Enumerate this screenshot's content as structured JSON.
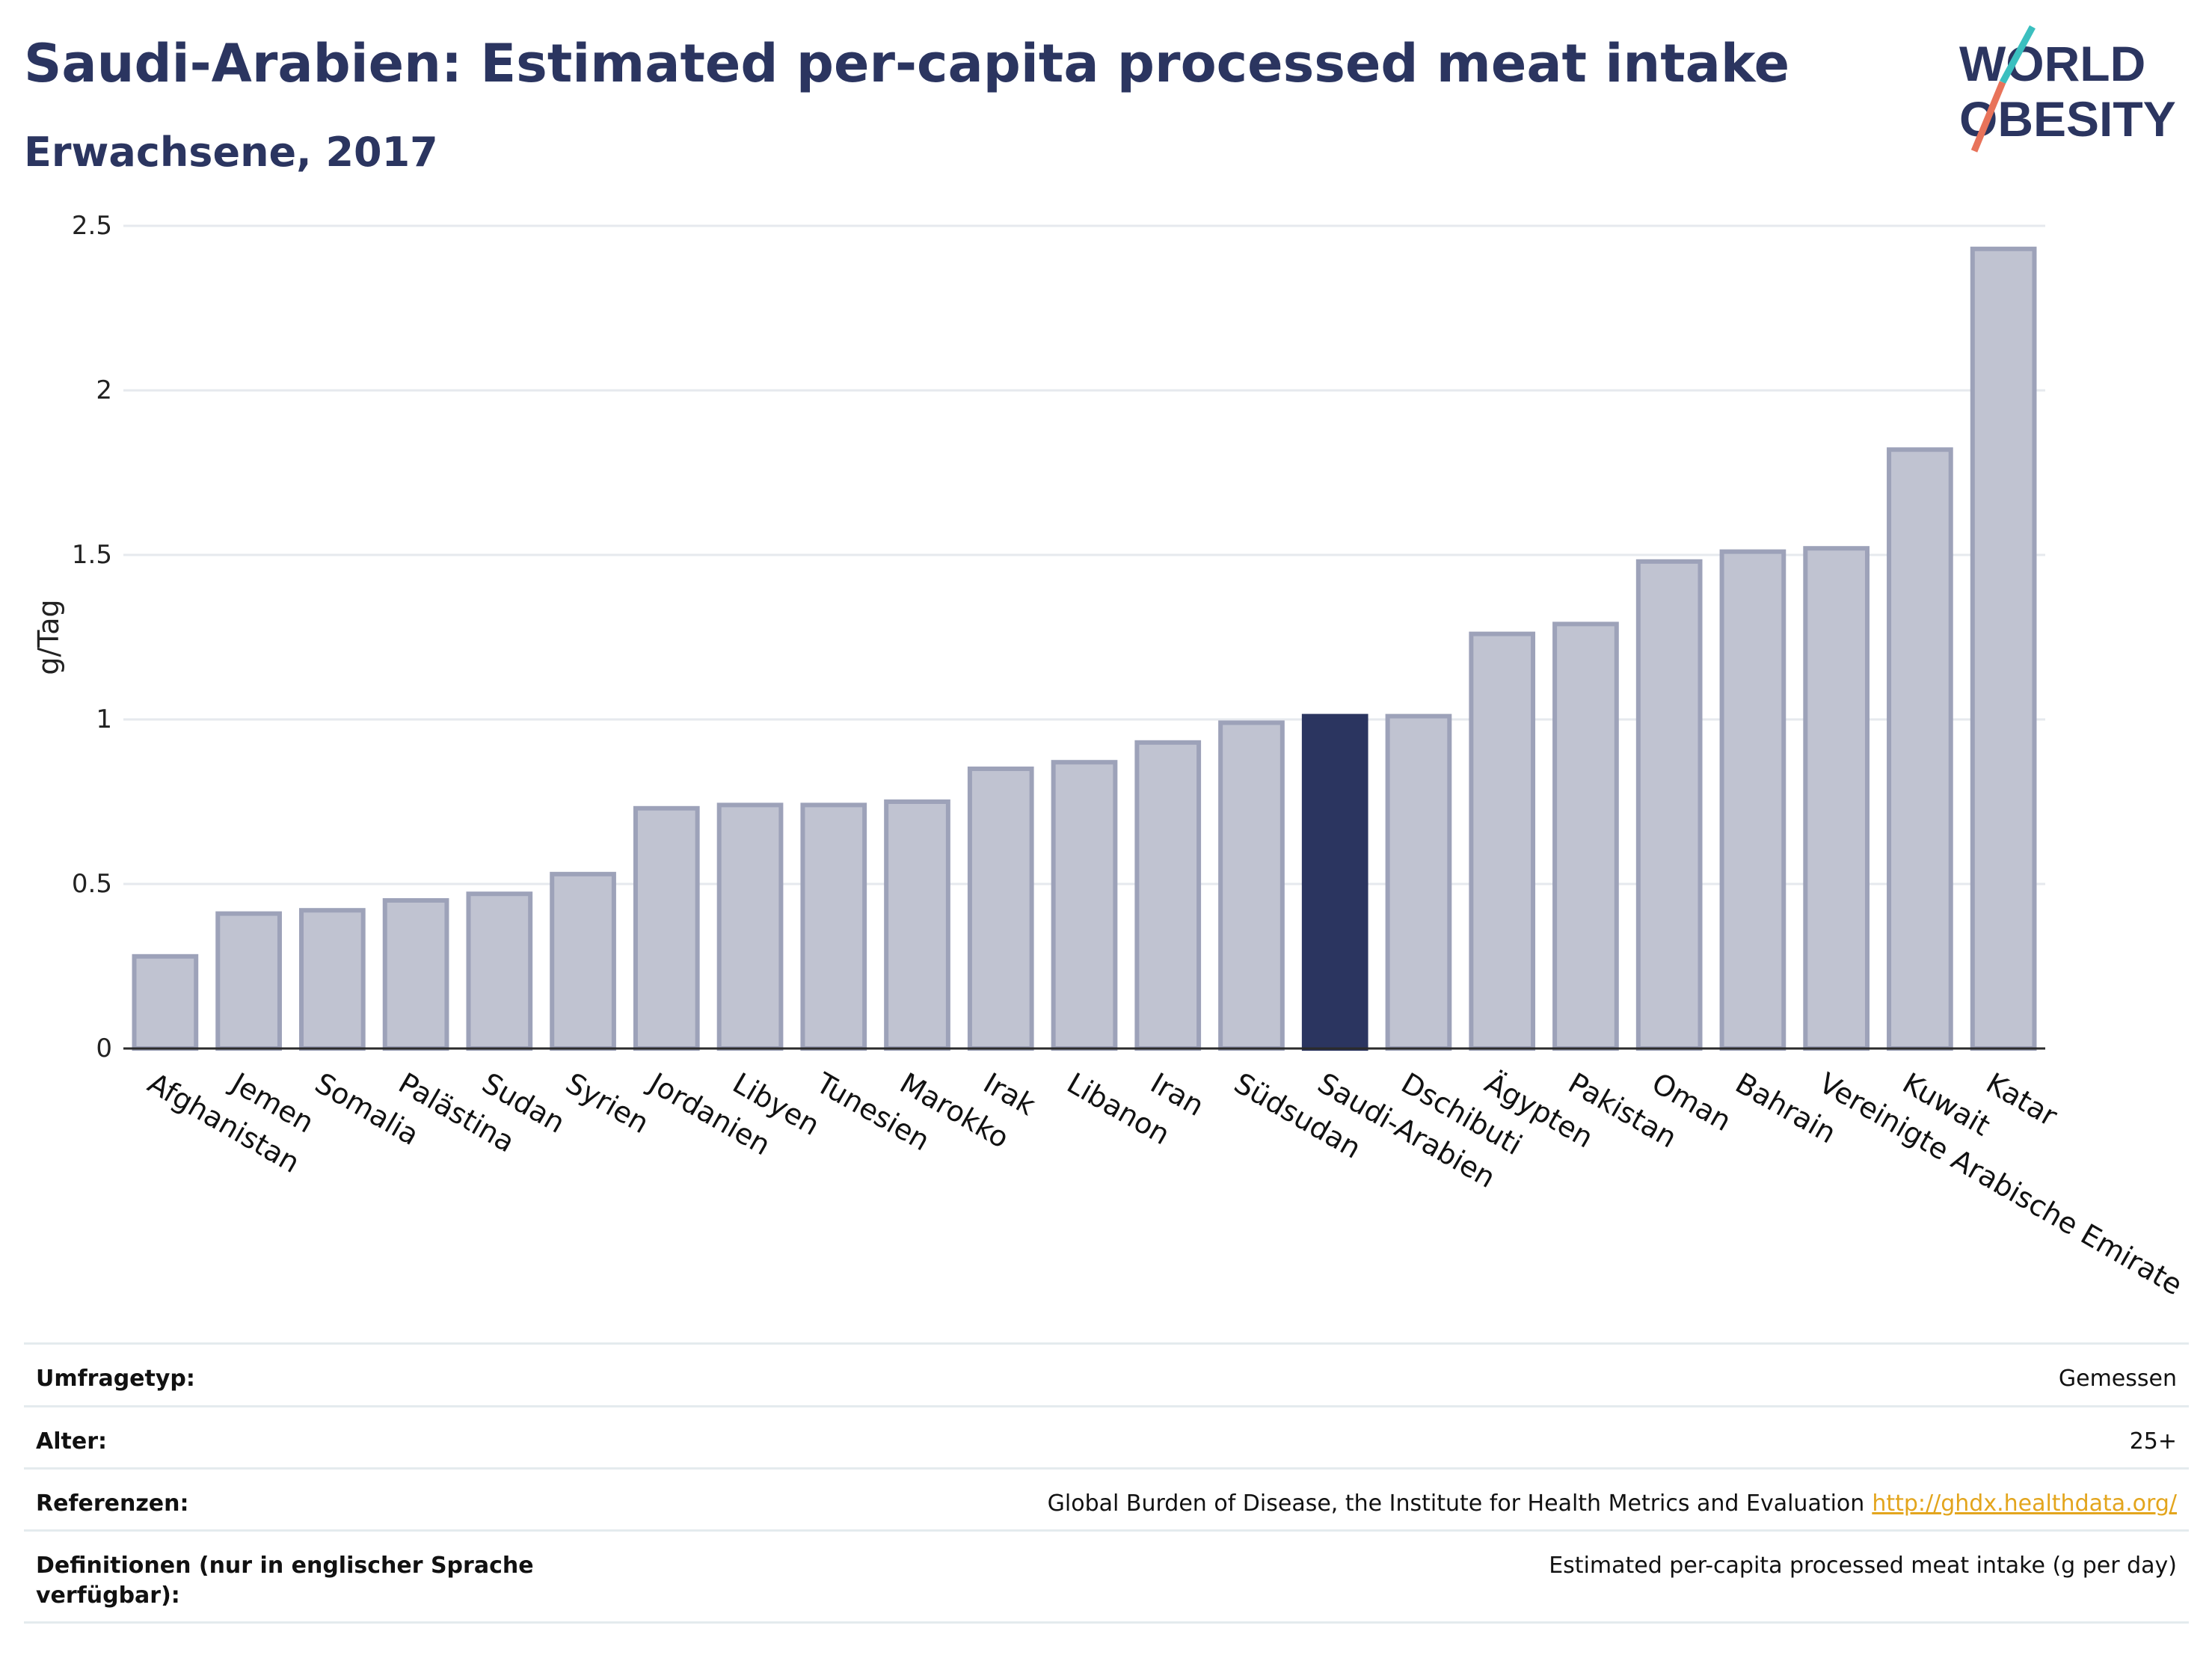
{
  "header": {
    "title": "Saudi-Arabien: Estimated per-capita processed meat intake",
    "subtitle": "Erwachsene, 2017"
  },
  "logo": {
    "line1": "WORLD",
    "line2": "OBESITY",
    "accent": "#e8735a",
    "accent2": "#3bbfbf"
  },
  "colors": {
    "bar": "#c0c3d1",
    "bar_stroke": "#9da2b9",
    "highlight": "#2b3560",
    "grid": "#e6e9ee",
    "axis": "#2b2b2b",
    "text": "#2b3560"
  },
  "chart_data": {
    "type": "bar",
    "title": "Saudi-Arabien: Estimated per-capita processed meat intake",
    "subtitle": "Erwachsene, 2017",
    "ylabel": "g/Tag",
    "xlabel": "",
    "ylim": [
      0,
      2.5
    ],
    "yticks": [
      0,
      0.5,
      1,
      1.5,
      2,
      2.5
    ],
    "ytick_labels": [
      "0",
      "0.5",
      "1",
      "1.5",
      "2",
      "2.5"
    ],
    "grid": true,
    "highlight": "Saudi-Arabien",
    "categories": [
      "Afghanistan",
      "Jemen",
      "Somalia",
      "Palästina",
      "Sudan",
      "Syrien",
      "Jordanien",
      "Libyen",
      "Tunesien",
      "Marokko",
      "Irak",
      "Libanon",
      "Iran",
      "Südsudan",
      "Saudi-Arabien",
      "Dschibuti",
      "Ägypten",
      "Pakistan",
      "Oman",
      "Bahrain",
      "Vereinigte Arabische Emirate",
      "Kuwait",
      "Katar"
    ],
    "values": [
      0.28,
      0.41,
      0.42,
      0.45,
      0.47,
      0.53,
      0.73,
      0.74,
      0.74,
      0.75,
      0.85,
      0.87,
      0.93,
      0.99,
      1.01,
      1.01,
      1.26,
      1.29,
      1.48,
      1.51,
      1.52,
      1.82,
      2.43
    ]
  },
  "meta": [
    {
      "label": "Umfragetyp:",
      "value": "Gemessen"
    },
    {
      "label": "Alter:",
      "value": "25+"
    },
    {
      "label": "Referenzen:",
      "value": "Global Burden of Disease, the Institute for Health Metrics and Evaluation",
      "link": "http://ghdx.healthdata.org/"
    },
    {
      "label": "Definitionen (nur in englischer Sprache verfügbar):",
      "value": "Estimated per-capita processed meat intake (g per day)"
    }
  ]
}
